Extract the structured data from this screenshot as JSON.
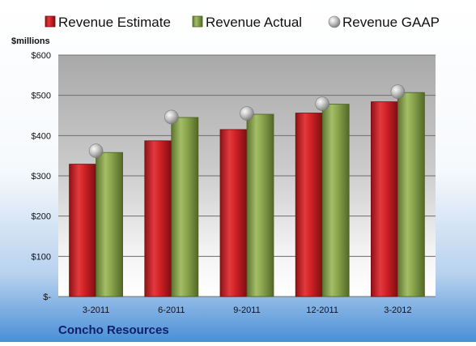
{
  "chart_data": {
    "type": "bar",
    "title": "",
    "ylabel": "$millions",
    "xlabel": "",
    "company": "Concho Resources",
    "categories": [
      "3-2011",
      "6-2011",
      "9-2011",
      "12-2011",
      "3-2012"
    ],
    "series": [
      {
        "name": "Revenue Estimate",
        "kind": "bar",
        "values": [
          329,
          387,
          415,
          456,
          484
        ],
        "color": "#cc1f24"
      },
      {
        "name": "Revenue Actual",
        "kind": "bar",
        "values": [
          358,
          445,
          453,
          478,
          507
        ],
        "color": "#86a24a"
      },
      {
        "name": "Revenue GAAP",
        "kind": "point",
        "values": [
          362,
          446,
          455,
          479,
          509
        ],
        "color": "#a8a8a8"
      }
    ],
    "ylim": [
      0,
      600
    ],
    "yticks": [
      0,
      100,
      200,
      300,
      400,
      500,
      600
    ],
    "ytick_labels": [
      "$-",
      "$100",
      "$200",
      "$300",
      "$400",
      "$500",
      "$600"
    ],
    "grid": true,
    "legend": "top"
  }
}
